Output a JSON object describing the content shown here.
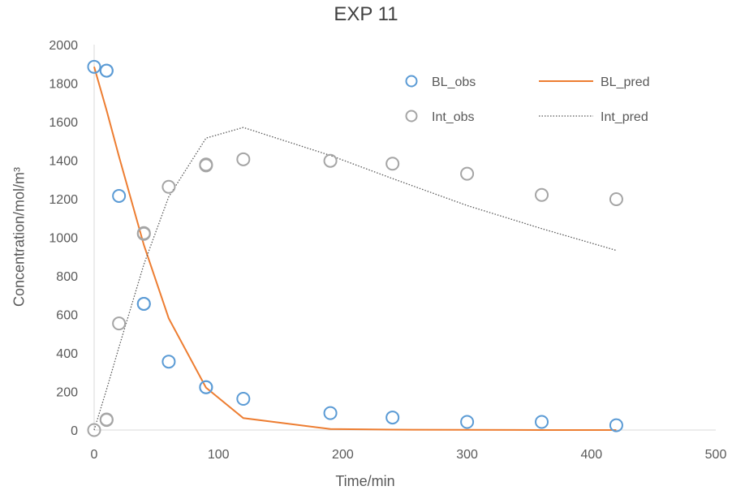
{
  "chart_data": {
    "type": "scatter",
    "title": "EXP 11",
    "xlabel": "Time/min",
    "ylabel": "Concentration/mol/m³",
    "xlim": [
      0,
      500
    ],
    "ylim": [
      0,
      2000
    ],
    "xticks": [
      0,
      100,
      200,
      300,
      400,
      500
    ],
    "yticks": [
      0,
      200,
      400,
      600,
      800,
      1000,
      1200,
      1400,
      1600,
      1800,
      2000
    ],
    "grid": false,
    "legend_position": "top-right",
    "series": [
      {
        "name": "BL_obs",
        "kind": "markers",
        "color": "#5B9BD5",
        "x": [
          0,
          10,
          10,
          20,
          40,
          40,
          60,
          90,
          90,
          120,
          190,
          240,
          300,
          360,
          420
        ],
        "y": [
          1885,
          1865,
          1865,
          1215,
          655,
          655,
          355,
          222,
          222,
          162,
          88,
          65,
          42,
          42,
          25
        ]
      },
      {
        "name": "BL_pred",
        "kind": "line",
        "color": "#ED7D31",
        "x": [
          0,
          10,
          20,
          40,
          60,
          90,
          120,
          190,
          240,
          300,
          360,
          420
        ],
        "y": [
          1885,
          1660,
          1420,
          960,
          580,
          220,
          62,
          5,
          2,
          1,
          0,
          0
        ]
      },
      {
        "name": "Int_obs",
        "kind": "markers",
        "color": "#A5A5A5",
        "x": [
          0,
          10,
          10,
          20,
          40,
          40,
          60,
          90,
          90,
          120,
          190,
          240,
          300,
          360,
          420
        ],
        "y": [
          0,
          55,
          52,
          553,
          1022,
          1018,
          1262,
          1378,
          1373,
          1405,
          1397,
          1382,
          1330,
          1220,
          1198
        ]
      },
      {
        "name": "Int_pred",
        "kind": "dotted-line",
        "color": "#595959",
        "x": [
          0,
          10,
          20,
          40,
          60,
          90,
          120,
          190,
          240,
          300,
          360,
          420
        ],
        "y": [
          0,
          210,
          430,
          860,
          1210,
          1515,
          1570,
          1425,
          1305,
          1165,
          1045,
          932
        ]
      }
    ]
  }
}
